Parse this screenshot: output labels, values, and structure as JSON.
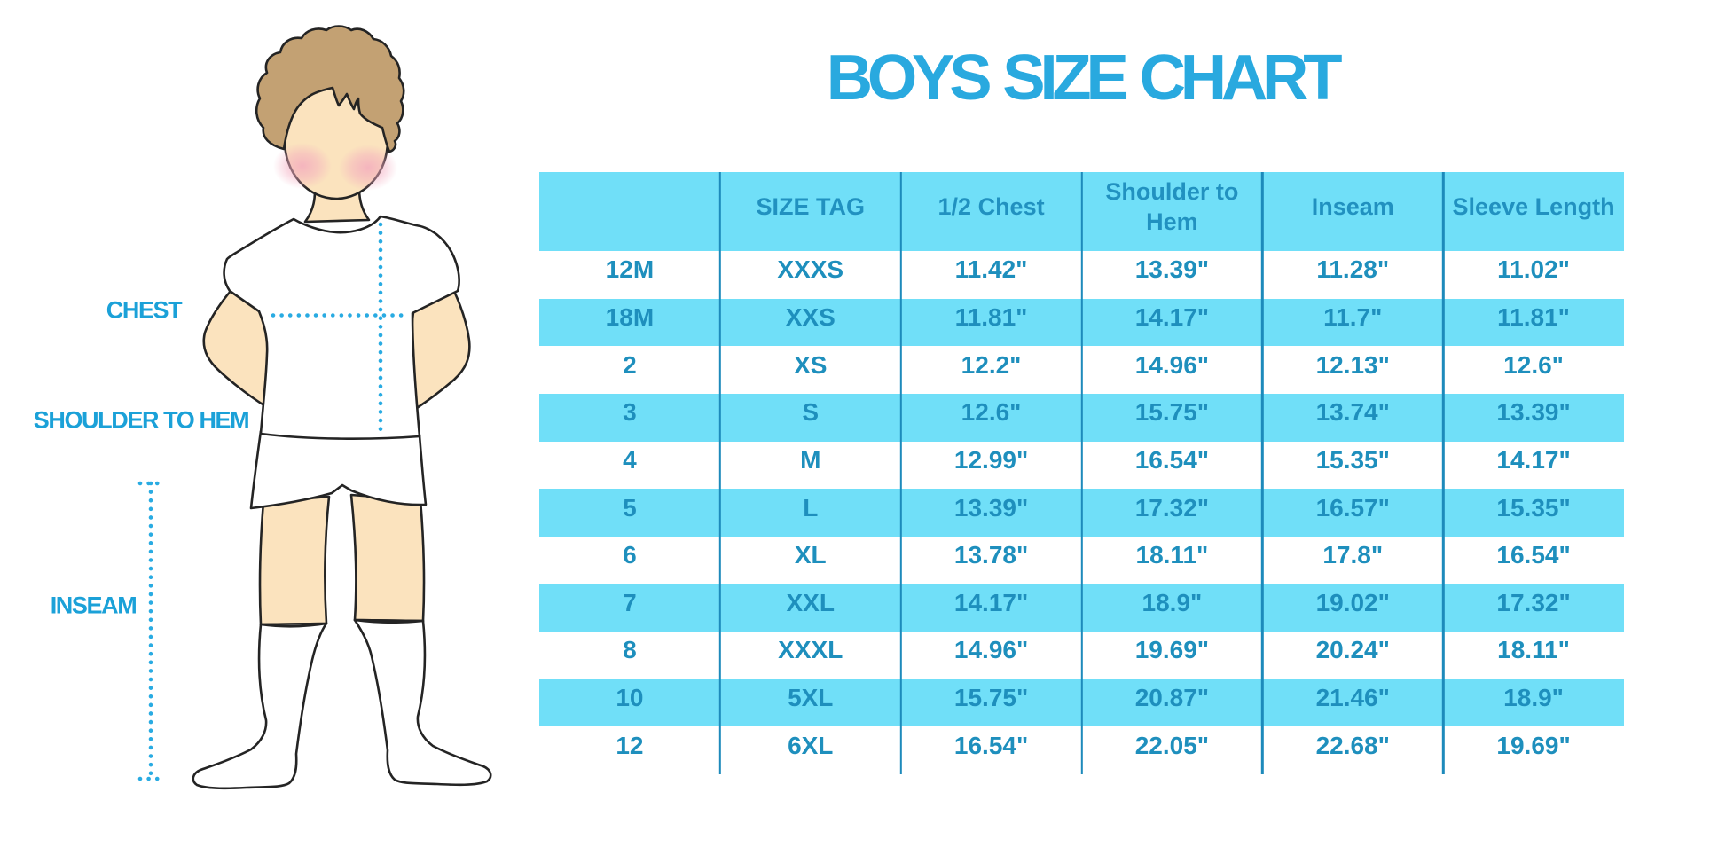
{
  "title": {
    "text": "BOYS SIZE CHART",
    "color": "#29a9df"
  },
  "diagram": {
    "labels": {
      "chest": "CHEST",
      "shoulder_to_hem": "SHOULDER TO HEM",
      "inseam": "INSEAM"
    },
    "label_color": "#1ba1d8",
    "dotted_line_color": "#29abe2",
    "figure": {
      "description": "cartoon boy in white t-shirt, white shorts and white knee socks",
      "skin_color": "#fbe3be",
      "hair_color": "#c3a173",
      "blush_color": "#f4a6bc",
      "outline_color": "#242424",
      "clothes_color": "#ffffff"
    }
  },
  "chart_data": {
    "type": "table",
    "title": "BOYS SIZE CHART",
    "columns": [
      "",
      "SIZE TAG",
      "1/2 Chest",
      "Shoulder to Hem",
      "Inseam",
      "Sleeve Length"
    ],
    "rows": [
      [
        "12M",
        "XXXS",
        "11.42\"",
        "13.39\"",
        "11.28\"",
        "11.02\""
      ],
      [
        "18M",
        "XXS",
        "11.81\"",
        "14.17\"",
        "11.7\"",
        "11.81\""
      ],
      [
        "2",
        "XS",
        "12.2\"",
        "14.96\"",
        "12.13\"",
        "12.6\""
      ],
      [
        "3",
        "S",
        "12.6\"",
        "15.75\"",
        "13.74\"",
        "13.39\""
      ],
      [
        "4",
        "M",
        "12.99\"",
        "16.54\"",
        "15.35\"",
        "14.17\""
      ],
      [
        "5",
        "L",
        "13.39\"",
        "17.32\"",
        "16.57\"",
        "15.35\""
      ],
      [
        "6",
        "XL",
        "13.78\"",
        "18.11\"",
        "17.8\"",
        "16.54\""
      ],
      [
        "7",
        "XXL",
        "14.17\"",
        "18.9\"",
        "19.02\"",
        "17.32\""
      ],
      [
        "8",
        "XXXL",
        "14.96\"",
        "19.69\"",
        "20.24\"",
        "18.11\""
      ],
      [
        "10",
        "5XL",
        "15.75\"",
        "20.87\"",
        "21.46\"",
        "18.9\""
      ],
      [
        "12",
        "6XL",
        "16.54\"",
        "22.05\"",
        "22.68\"",
        "19.69\""
      ]
    ],
    "layout": {
      "striping": "header cyan, data rows alternate white/cyan starting with white",
      "band_color": "#70dff8",
      "grid_line_color": "#1d8abb",
      "text_color": "#1e8fbd",
      "grid": "vertical column dividers only, no horizontal lines, no outer border"
    }
  }
}
